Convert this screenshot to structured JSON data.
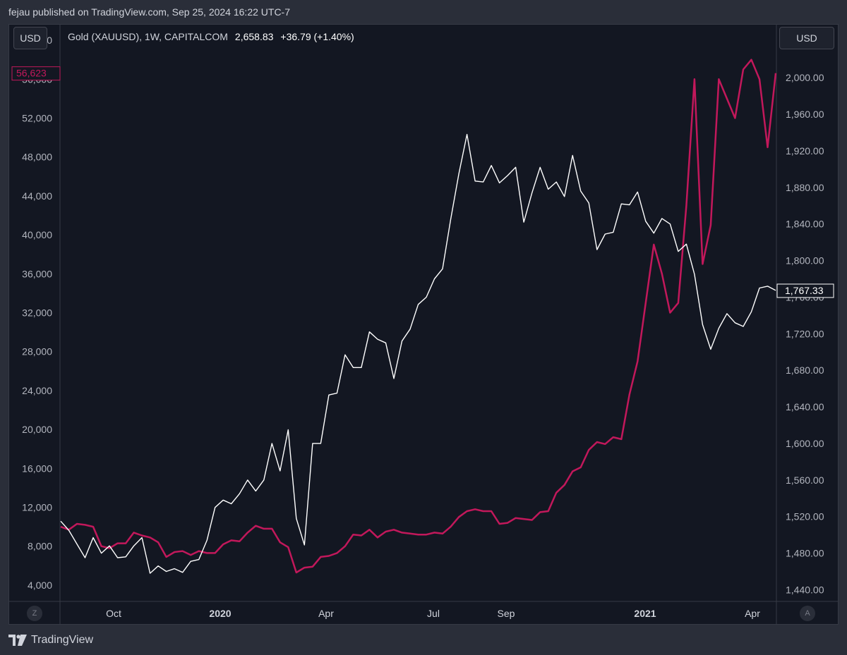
{
  "header": {
    "text": "fejau published on TradingView.com, Sep 25, 2024 16:22 UTC-7"
  },
  "footer": {
    "brand": "TradingView"
  },
  "controls": {
    "left_currency": "USD",
    "right_currency": "USD",
    "left_corner": "Z",
    "right_corner": "A"
  },
  "legend": {
    "symbol": "Gold (XAUUSD), 1W, CAPITALCOM",
    "price": "2,658.83",
    "change": "+36.79 (+1.40%)"
  },
  "chart_data": {
    "type": "line",
    "x_tick_labels": [
      "Oct",
      "2020",
      "Apr",
      "Jul",
      "Sep",
      "2021",
      "Apr"
    ],
    "x_tick_bold": [
      false,
      true,
      false,
      false,
      false,
      true,
      false
    ],
    "left_axis": {
      "ticks": [
        "4,000",
        "8,000",
        "12,000",
        "16,000",
        "20,000",
        "24,000",
        "28,000",
        "32,000",
        "36,000",
        "40,000",
        "44,000",
        "48,000",
        "52,000",
        "56,000",
        "60,000"
      ],
      "range": [
        2400,
        61600
      ],
      "last_value_label": "56,623",
      "last_value_color": "#c2185b"
    },
    "right_axis": {
      "ticks": [
        "1,440.00",
        "1,480.00",
        "1,520.00",
        "1,560.00",
        "1,600.00",
        "1,640.00",
        "1,680.00",
        "1,720.00",
        "1,760.00",
        "1,800.00",
        "1,840.00",
        "1,880.00",
        "1,920.00",
        "1,960.00",
        "2,000.00"
      ],
      "range": [
        1428,
        2058
      ],
      "last_value_label": "1,767.33"
    },
    "grid": false,
    "series": [
      {
        "color": "#c2185b",
        "axis": "left",
        "values": [
          10000,
          9700,
          10300,
          10200,
          10000,
          8000,
          7800,
          8300,
          8300,
          9400,
          9100,
          8900,
          8400,
          6900,
          7400,
          7500,
          7100,
          7500,
          7300,
          7300,
          8200,
          8600,
          8500,
          9400,
          10100,
          9800,
          9800,
          8400,
          7900,
          5300,
          5800,
          5900,
          6900,
          7000,
          7300,
          8000,
          9200,
          9100,
          9700,
          8900,
          9500,
          9700,
          9400,
          9300,
          9200,
          9200,
          9400,
          9300,
          10000,
          11000,
          11600,
          11800,
          11600,
          11600,
          10300,
          10400,
          10900,
          10800,
          10700,
          11500,
          11600,
          13500,
          14300,
          15700,
          16100,
          17900,
          18700,
          18500,
          19200,
          19000,
          23600,
          27000,
          33000,
          39000,
          36000,
          32000,
          33000,
          43000,
          56000,
          37000,
          41000,
          56000,
          54000,
          52000,
          57000,
          58000,
          56000,
          49000,
          56623
        ]
      },
      {
        "color": "#ffffff",
        "axis": "right",
        "values": [
          1515,
          1505,
          1490,
          1475,
          1497,
          1480,
          1488,
          1475,
          1476,
          1488,
          1497,
          1458,
          1466,
          1460,
          1463,
          1459,
          1471,
          1473,
          1494,
          1530,
          1538,
          1534,
          1545,
          1560,
          1548,
          1560,
          1600,
          1570,
          1615,
          1518,
          1489,
          1600,
          1600,
          1653,
          1655,
          1697,
          1683,
          1683,
          1722,
          1714,
          1710,
          1671,
          1712,
          1725,
          1752,
          1760,
          1780,
          1791,
          1845,
          1895,
          1938,
          1887,
          1886,
          1904,
          1885,
          1893,
          1902,
          1842,
          1874,
          1902,
          1878,
          1886,
          1870,
          1915,
          1876,
          1863,
          1812,
          1829,
          1831,
          1862,
          1861,
          1875,
          1843,
          1830,
          1846,
          1840,
          1810,
          1818,
          1785,
          1730,
          1703,
          1726,
          1742,
          1732,
          1728,
          1744,
          1770,
          1772,
          1767.33
        ]
      }
    ]
  }
}
